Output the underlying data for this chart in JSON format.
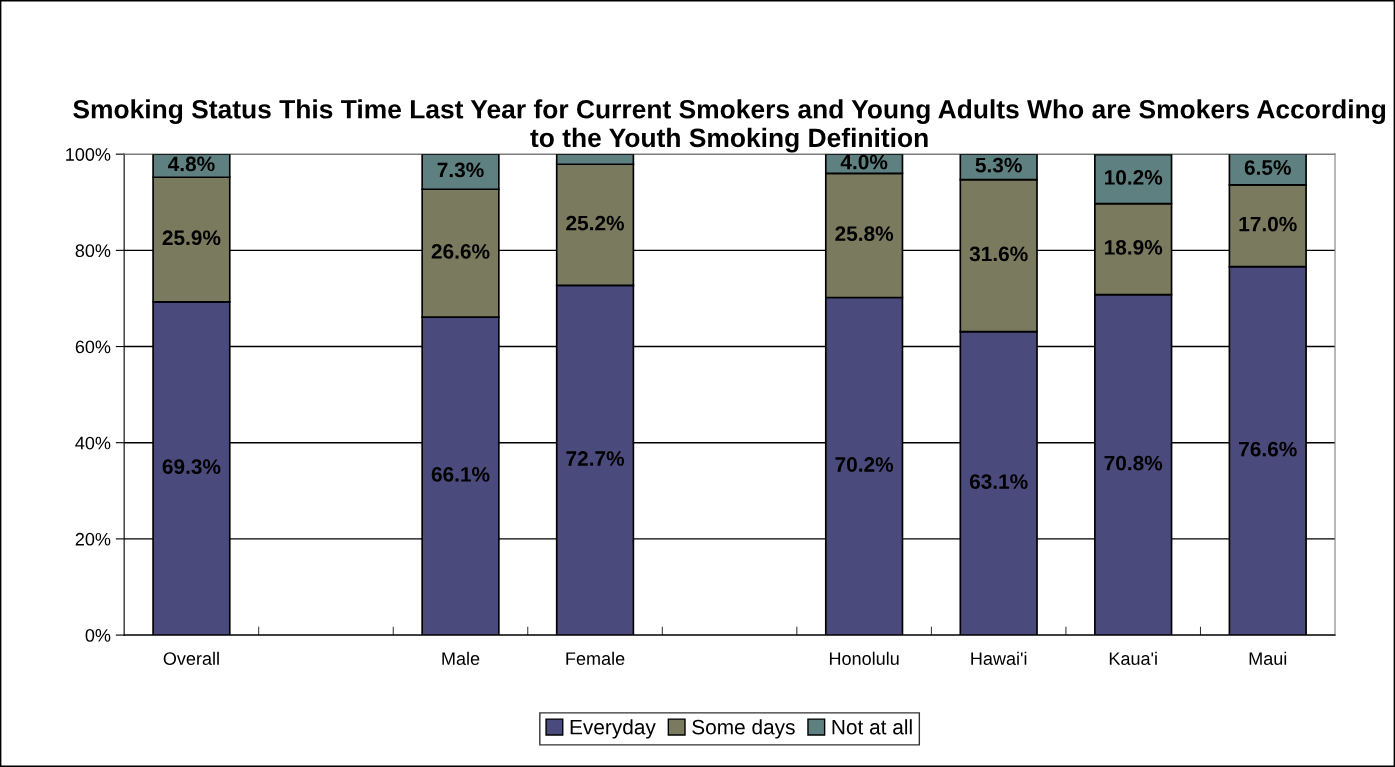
{
  "chart_data": {
    "type": "bar",
    "stacked": true,
    "title": "Smoking Status This Time Last Year for Current Smokers and Young Adults Who are Smokers According to the Youth Smoking Definition",
    "categories": [
      "Overall",
      null,
      "Male",
      "Female",
      null,
      "Honolulu",
      "Hawai'i",
      "Kaua'i",
      "Maui"
    ],
    "series": [
      {
        "name": "Everyday",
        "color": "#4a4a7c",
        "values": [
          69.3,
          null,
          66.1,
          72.7,
          null,
          70.2,
          63.1,
          70.8,
          76.6
        ],
        "value_labels": [
          "69.3%",
          null,
          "66.1%",
          "72.7%",
          null,
          "70.2%",
          "63.1%",
          "70.8%",
          "76.6%"
        ]
      },
      {
        "name": "Some days",
        "color": "#7a7a5e",
        "values": [
          25.9,
          null,
          26.6,
          25.2,
          null,
          25.8,
          31.6,
          18.9,
          17.0
        ],
        "value_labels": [
          "25.9%",
          null,
          "26.6%",
          "25.2%",
          null,
          "25.8%",
          "31.6%",
          "18.9%",
          "17.0%"
        ]
      },
      {
        "name": "Not at all",
        "color": "#5f8080",
        "values": [
          4.8,
          null,
          7.3,
          2.1,
          null,
          4.0,
          5.3,
          10.2,
          6.5
        ],
        "value_labels": [
          "4.8%",
          null,
          "7.3%",
          null,
          null,
          "4.0%",
          "5.3%",
          "10.2%",
          "6.5%"
        ]
      }
    ],
    "ylim": [
      0,
      100
    ],
    "yticks": [
      {
        "value": 0,
        "label": "0%"
      },
      {
        "value": 20,
        "label": "20%"
      },
      {
        "value": 40,
        "label": "40%"
      },
      {
        "value": 60,
        "label": "60%"
      },
      {
        "value": 80,
        "label": "80%"
      },
      {
        "value": 100,
        "label": "100%"
      }
    ],
    "grid": "y",
    "legend": "bottom"
  }
}
